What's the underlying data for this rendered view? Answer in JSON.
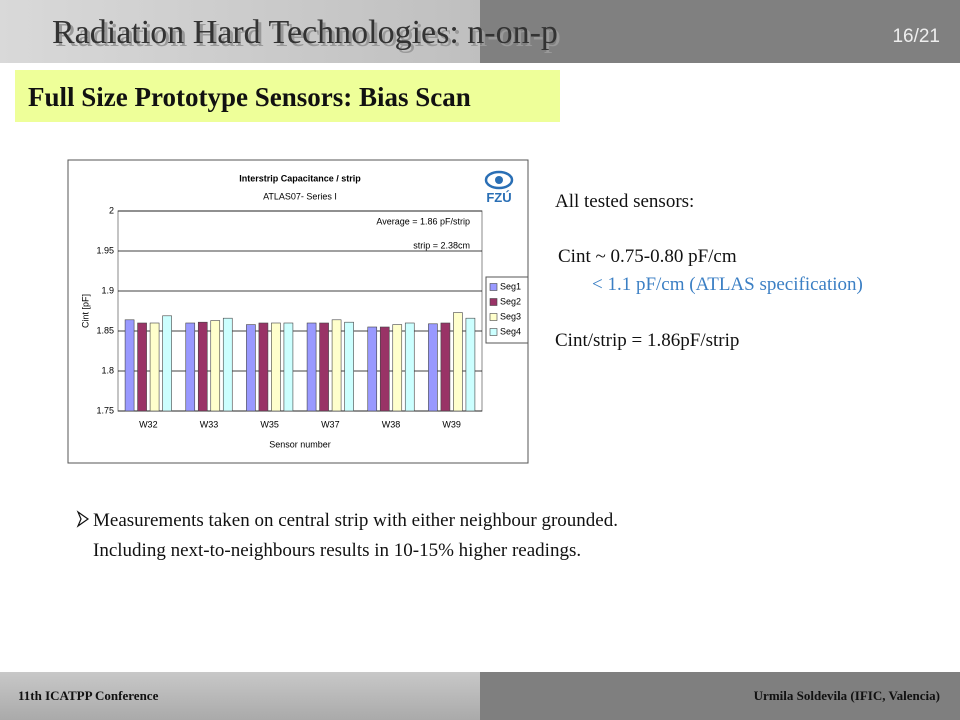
{
  "header": {
    "title": "Radiation Hard Technologies: n-on-p",
    "page": "16/21"
  },
  "subtitle": "Full Size Prototype Sensors: Bias Scan",
  "logo": "FZÚ",
  "notes": [
    "All tested sensors:",
    "Cint ~ 0.75-0.80 pF/cm",
    "< 1.1 pF/cm (ATLAS specification)",
    "Cint/strip = 1.86pF/strip"
  ],
  "bullets": [
    "Measurements taken on central strip with either neighbour grounded.",
    "Including next-to-neighbours results in 10-15% higher readings."
  ],
  "footer": {
    "left": "11th ICATPP Conference",
    "right": "Urmila Soldevila (IFIC, Valencia)"
  },
  "chart_data": {
    "type": "bar",
    "title": "Interstrip Capacitance / strip",
    "subtitle": "ATLAS07- Series I",
    "annotations": [
      "Average = 1.86 pF/strip",
      "strip = 2.38cm"
    ],
    "x_label": "Sensor number",
    "y_label": "Cint [pF]",
    "categories": [
      "W32",
      "W33",
      "W35",
      "W37",
      "W38",
      "W39"
    ],
    "series": [
      {
        "name": "Seg1",
        "color": "#9999ff",
        "values": [
          1.864,
          1.86,
          1.858,
          1.86,
          1.855,
          1.859
        ]
      },
      {
        "name": "Seg2",
        "color": "#993366",
        "values": [
          1.86,
          1.861,
          1.86,
          1.86,
          1.855,
          1.86
        ]
      },
      {
        "name": "Seg3",
        "color": "#ffffcc",
        "values": [
          1.86,
          1.863,
          1.86,
          1.864,
          1.858,
          1.873
        ]
      },
      {
        "name": "Seg4",
        "color": "#ccffff",
        "values": [
          1.869,
          1.866,
          1.86,
          1.861,
          1.86,
          1.866
        ]
      }
    ],
    "ylim": [
      1.75,
      2
    ],
    "yticks": [
      1.75,
      1.8,
      1.85,
      1.9,
      1.95,
      2
    ],
    "grid": true,
    "legend": "right"
  }
}
